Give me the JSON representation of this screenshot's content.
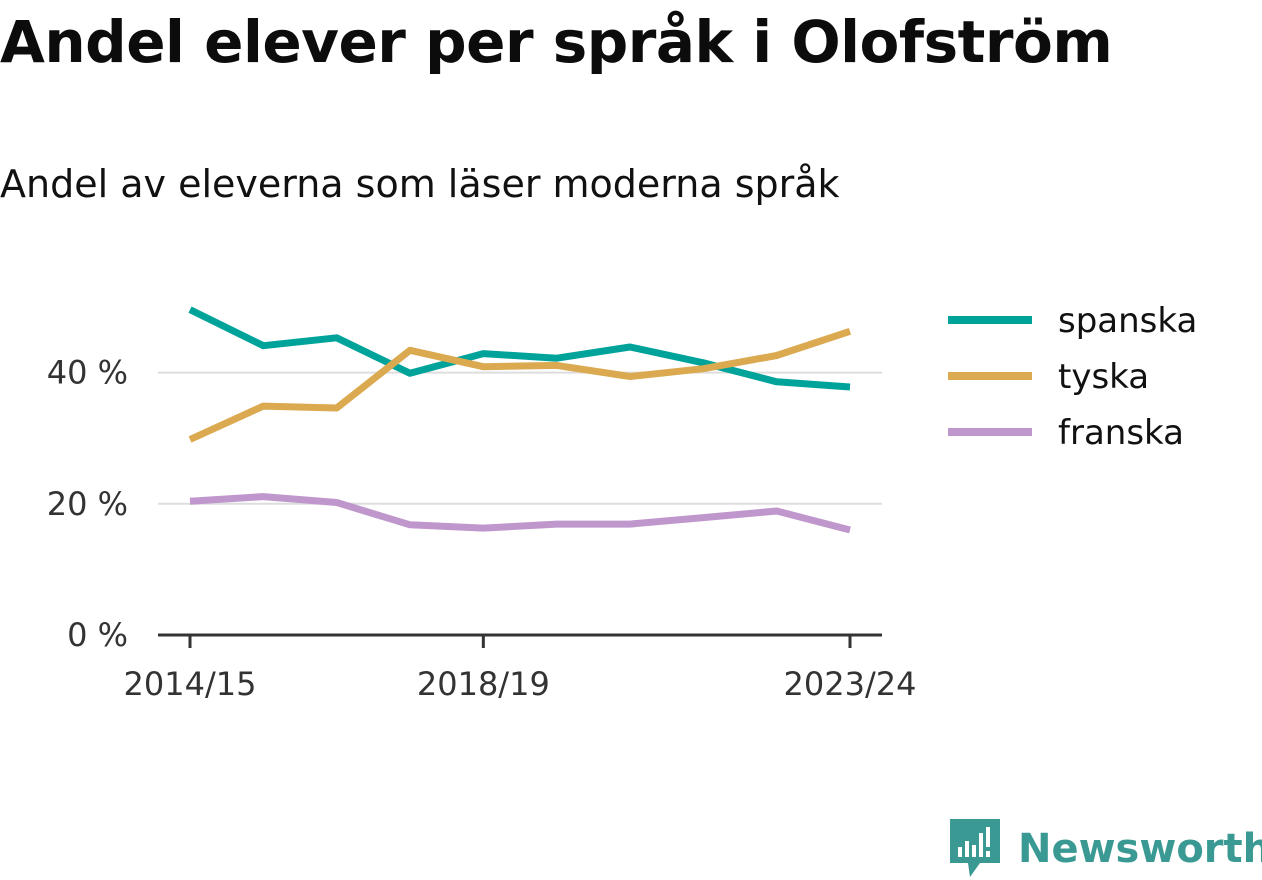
{
  "header": {
    "title": "Andel elever per språk i Olofström",
    "subtitle": "Andel av eleverna som läser moderna språk"
  },
  "chart_data": {
    "type": "line",
    "x": [
      "2014/15",
      "2015/16",
      "2016/17",
      "2017/18",
      "2018/19",
      "2019/20",
      "2020/21",
      "2021/22",
      "2022/23",
      "2023/24"
    ],
    "x_ticks": [
      "2014/15",
      "2018/19",
      "2023/24"
    ],
    "series": [
      {
        "name": "spanska",
        "color": "#00a39a",
        "values": [
          49.6,
          44.1,
          45.3,
          39.9,
          42.9,
          42.2,
          43.9,
          41.5,
          38.6,
          37.8
        ]
      },
      {
        "name": "tyska",
        "color": "#dba94f",
        "values": [
          29.8,
          34.9,
          34.6,
          43.4,
          40.9,
          41.1,
          39.4,
          40.6,
          42.6,
          46.3
        ]
      },
      {
        "name": "franska",
        "color": "#c097cc",
        "values": [
          20.4,
          21.1,
          20.2,
          16.8,
          16.3,
          16.9,
          16.9,
          17.9,
          18.9,
          16.0
        ]
      }
    ],
    "y_ticks": [
      0,
      20,
      40
    ],
    "y_tick_labels": [
      "0 %",
      "20 %",
      "40 %"
    ],
    "ylim": [
      0,
      50
    ],
    "grid": true,
    "legend_position": "right"
  },
  "brand": {
    "name": "Newsworthy",
    "color": "#3a9a93",
    "icon": "newsworthy-logo-icon"
  }
}
